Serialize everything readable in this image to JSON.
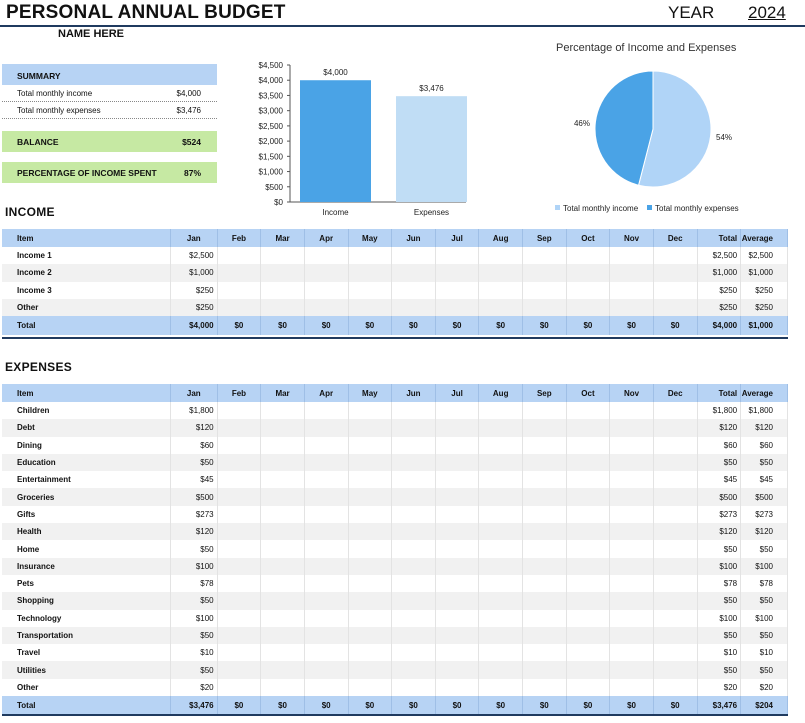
{
  "header": {
    "title": "PERSONAL ANNUAL BUDGET",
    "year_label": "YEAR",
    "year": "2024",
    "name": "NAME HERE"
  },
  "summary": {
    "title": "SUMMARY",
    "income_label": "Total monthly income",
    "income_value": "$4,000",
    "expenses_label": "Total monthly expenses",
    "expenses_value": "$3,476",
    "balance_label": "BALANCE",
    "balance_value": "$524",
    "pct_label": "PERCENTAGE OF INCOME SPENT",
    "pct_value": "87%"
  },
  "chart_data": [
    {
      "type": "bar",
      "title": "",
      "categories": [
        "Income",
        "Expenses"
      ],
      "values": [
        4000,
        3476
      ],
      "data_labels": [
        "$4,000",
        "$3,476"
      ],
      "colors": [
        "#4aa3e6",
        "#c0ddf5"
      ],
      "ylim": [
        0,
        4500
      ],
      "yticks": [
        0,
        500,
        1000,
        1500,
        2000,
        2500,
        3000,
        3500,
        4000,
        4500
      ],
      "ytick_labels": [
        "$0",
        "$500",
        "$1,000",
        "$1,500",
        "$2,000",
        "$2,500",
        "$3,000",
        "$3,500",
        "$4,000",
        "$4,500"
      ],
      "grid": false
    },
    {
      "type": "pie",
      "title": "Percentage of Income and Expenses",
      "slices": [
        {
          "name": "Total monthly income",
          "value": 54,
          "label": "54%",
          "color": "#b0d4f7"
        },
        {
          "name": "Total monthly expenses",
          "value": 46,
          "label": "46%",
          "color": "#4aa3e6"
        }
      ],
      "legend": "bottom"
    }
  ],
  "columns": [
    "Item",
    "Jan",
    "Feb",
    "Mar",
    "Apr",
    "May",
    "Jun",
    "Jul",
    "Aug",
    "Sep",
    "Oct",
    "Nov",
    "Dec",
    "Total",
    "Average"
  ],
  "income": {
    "title": "INCOME",
    "rows": [
      {
        "item": "Income 1",
        "jan": "$2,500",
        "total": "$2,500",
        "avg": "$2,500"
      },
      {
        "item": "Income 2",
        "jan": "$1,000",
        "total": "$1,000",
        "avg": "$1,000"
      },
      {
        "item": "Income 3",
        "jan": "$250",
        "total": "$250",
        "avg": "$250"
      },
      {
        "item": "Other",
        "jan": "$250",
        "total": "$250",
        "avg": "$250"
      }
    ],
    "total": {
      "item": "Total",
      "months": [
        "$4,000",
        "$0",
        "$0",
        "$0",
        "$0",
        "$0",
        "$0",
        "$0",
        "$0",
        "$0",
        "$0",
        "$0"
      ],
      "total": "$4,000",
      "avg": "$1,000"
    }
  },
  "expenses": {
    "title": "EXPENSES",
    "rows": [
      {
        "item": "Children",
        "jan": "$1,800",
        "total": "$1,800",
        "avg": "$1,800"
      },
      {
        "item": "Debt",
        "jan": "$120",
        "total": "$120",
        "avg": "$120"
      },
      {
        "item": "Dining",
        "jan": "$60",
        "total": "$60",
        "avg": "$60"
      },
      {
        "item": "Education",
        "jan": "$50",
        "total": "$50",
        "avg": "$50"
      },
      {
        "item": "Entertainment",
        "jan": "$45",
        "total": "$45",
        "avg": "$45"
      },
      {
        "item": "Groceries",
        "jan": "$500",
        "total": "$500",
        "avg": "$500"
      },
      {
        "item": "Gifts",
        "jan": "$273",
        "total": "$273",
        "avg": "$273"
      },
      {
        "item": "Health",
        "jan": "$120",
        "total": "$120",
        "avg": "$120"
      },
      {
        "item": "Home",
        "jan": "$50",
        "total": "$50",
        "avg": "$50"
      },
      {
        "item": "Insurance",
        "jan": "$100",
        "total": "$100",
        "avg": "$100"
      },
      {
        "item": "Pets",
        "jan": "$78",
        "total": "$78",
        "avg": "$78"
      },
      {
        "item": "Shopping",
        "jan": "$50",
        "total": "$50",
        "avg": "$50"
      },
      {
        "item": "Technology",
        "jan": "$100",
        "total": "$100",
        "avg": "$100"
      },
      {
        "item": "Transportation",
        "jan": "$50",
        "total": "$50",
        "avg": "$50"
      },
      {
        "item": "Travel",
        "jan": "$10",
        "total": "$10",
        "avg": "$10"
      },
      {
        "item": "Utilities",
        "jan": "$50",
        "total": "$50",
        "avg": "$50"
      },
      {
        "item": "Other",
        "jan": "$20",
        "total": "$20",
        "avg": "$20"
      }
    ],
    "total": {
      "item": "Total",
      "months": [
        "$3,476",
        "$0",
        "$0",
        "$0",
        "$0",
        "$0",
        "$0",
        "$0",
        "$0",
        "$0",
        "$0",
        "$0"
      ],
      "total": "$3,476",
      "avg": "$204"
    }
  }
}
